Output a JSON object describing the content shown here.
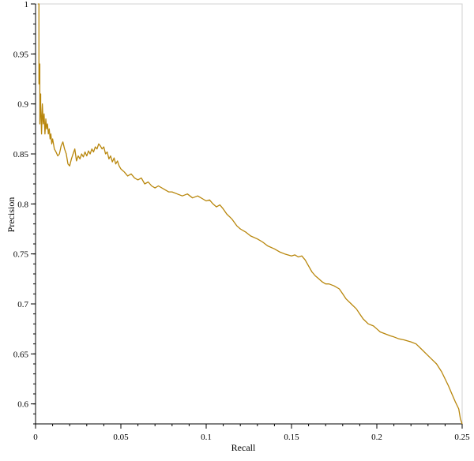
{
  "chart_data": {
    "type": "line",
    "xlabel": "Recall",
    "ylabel": "Precision",
    "xlim": [
      0,
      0.25
    ],
    "ylim": [
      0.58,
      1.0
    ],
    "x_ticks": [
      0,
      0.05,
      0.1,
      0.15,
      0.2,
      0.25
    ],
    "x_tick_labels": [
      "0",
      "0.05",
      "0.1",
      "0.15",
      "0.2",
      "0.25"
    ],
    "y_ticks": [
      0.6,
      0.65,
      0.7,
      0.75,
      0.8,
      0.85,
      0.9,
      0.95,
      1.0
    ],
    "y_tick_labels": [
      "0.6",
      "0.65",
      "0.7",
      "0.75",
      "0.8",
      "0.85",
      "0.9",
      "0.95",
      "1"
    ],
    "grid": false,
    "series": [
      {
        "color": "#b8860b",
        "x": [
          0.0015,
          0.002,
          0.002,
          0.0025,
          0.0025,
          0.003,
          0.003,
          0.0035,
          0.004,
          0.0045,
          0.005,
          0.0055,
          0.006,
          0.0065,
          0.007,
          0.0075,
          0.008,
          0.0085,
          0.009,
          0.0095,
          0.01,
          0.011,
          0.012,
          0.013,
          0.014,
          0.015,
          0.016,
          0.017,
          0.018,
          0.019,
          0.02,
          0.021,
          0.022,
          0.023,
          0.024,
          0.025,
          0.026,
          0.027,
          0.028,
          0.029,
          0.03,
          0.031,
          0.032,
          0.033,
          0.034,
          0.035,
          0.036,
          0.037,
          0.038,
          0.039,
          0.04,
          0.041,
          0.042,
          0.043,
          0.044,
          0.045,
          0.046,
          0.047,
          0.048,
          0.049,
          0.05,
          0.052,
          0.054,
          0.056,
          0.058,
          0.06,
          0.062,
          0.064,
          0.066,
          0.068,
          0.07,
          0.072,
          0.075,
          0.078,
          0.08,
          0.083,
          0.086,
          0.089,
          0.092,
          0.095,
          0.098,
          0.1,
          0.102,
          0.104,
          0.106,
          0.108,
          0.11,
          0.112,
          0.115,
          0.118,
          0.12,
          0.123,
          0.126,
          0.13,
          0.133,
          0.136,
          0.14,
          0.143,
          0.146,
          0.15,
          0.152,
          0.154,
          0.156,
          0.158,
          0.16,
          0.162,
          0.164,
          0.166,
          0.168,
          0.17,
          0.172,
          0.175,
          0.178,
          0.18,
          0.182,
          0.185,
          0.188,
          0.19,
          0.192,
          0.195,
          0.198,
          0.2,
          0.202,
          0.205,
          0.208,
          0.21,
          0.213,
          0.216,
          0.22,
          0.223,
          0.226,
          0.229,
          0.232,
          0.235,
          0.238,
          0.24,
          0.242,
          0.244,
          0.246,
          0.248,
          0.249,
          0.25
        ],
        "y": [
          1.0,
          1.0,
          0.92,
          0.94,
          0.88,
          0.91,
          0.9,
          0.87,
          0.9,
          0.88,
          0.89,
          0.87,
          0.885,
          0.875,
          0.88,
          0.87,
          0.875,
          0.865,
          0.87,
          0.86,
          0.865,
          0.855,
          0.852,
          0.848,
          0.85,
          0.858,
          0.862,
          0.855,
          0.85,
          0.84,
          0.838,
          0.845,
          0.85,
          0.855,
          0.843,
          0.848,
          0.845,
          0.85,
          0.847,
          0.852,
          0.848,
          0.853,
          0.85,
          0.855,
          0.852,
          0.857,
          0.855,
          0.86,
          0.858,
          0.855,
          0.857,
          0.85,
          0.852,
          0.845,
          0.848,
          0.842,
          0.846,
          0.84,
          0.843,
          0.838,
          0.835,
          0.832,
          0.828,
          0.83,
          0.826,
          0.824,
          0.826,
          0.82,
          0.822,
          0.818,
          0.816,
          0.818,
          0.815,
          0.812,
          0.812,
          0.81,
          0.808,
          0.81,
          0.806,
          0.808,
          0.805,
          0.803,
          0.804,
          0.8,
          0.797,
          0.799,
          0.795,
          0.79,
          0.785,
          0.778,
          0.775,
          0.772,
          0.768,
          0.765,
          0.762,
          0.758,
          0.755,
          0.752,
          0.75,
          0.748,
          0.749,
          0.747,
          0.748,
          0.744,
          0.738,
          0.732,
          0.728,
          0.725,
          0.722,
          0.72,
          0.72,
          0.718,
          0.715,
          0.71,
          0.705,
          0.7,
          0.695,
          0.69,
          0.685,
          0.68,
          0.678,
          0.675,
          0.672,
          0.67,
          0.668,
          0.667,
          0.665,
          0.664,
          0.662,
          0.66,
          0.655,
          0.65,
          0.645,
          0.64,
          0.632,
          0.625,
          0.618,
          0.61,
          0.602,
          0.595,
          0.585,
          0.58
        ]
      }
    ]
  }
}
